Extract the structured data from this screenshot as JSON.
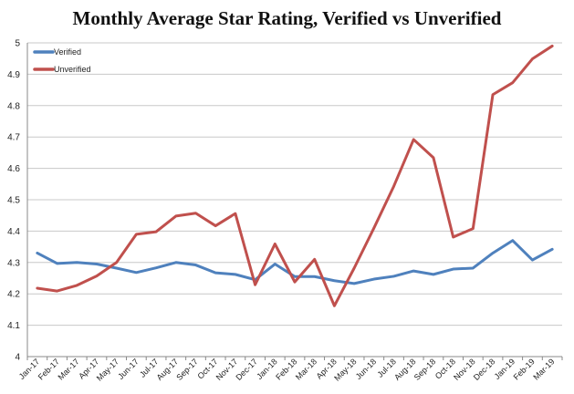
{
  "chart_data": {
    "type": "line",
    "title": "Monthly Average Star Rating, Verified vs Unverified",
    "xlabel": "",
    "ylabel": "",
    "ylim": [
      4,
      5
    ],
    "yticks": [
      "4",
      "4.1",
      "4.2",
      "4.3",
      "4.4",
      "4.5",
      "4.6",
      "4.7",
      "4.8",
      "4.9",
      "5"
    ],
    "grid": true,
    "legend_position": "top-left",
    "categories": [
      "Jan-17",
      "Feb-17",
      "Mar-17",
      "Apr-17",
      "May-17",
      "Jun-17",
      "Jul-17",
      "Aug-17",
      "Sep-17",
      "Oct-17",
      "Nov-17",
      "Dec-17",
      "Jan-18",
      "Feb-18",
      "Mar-18",
      "Apr-18",
      "May-18",
      "Jun-18",
      "Jul-18",
      "Aug-18",
      "Sep-18",
      "Oct-18",
      "Nov-18",
      "Dec-18",
      "Jan-19",
      "Feb-19",
      "Mar-19"
    ],
    "series": [
      {
        "name": "Verified",
        "color": "#4f81bd",
        "values": [
          4.33,
          4.297,
          4.3,
          4.295,
          4.282,
          4.268,
          4.283,
          4.3,
          4.292,
          4.267,
          4.262,
          4.245,
          4.295,
          4.255,
          4.255,
          4.242,
          4.233,
          4.247,
          4.256,
          4.273,
          4.262,
          4.279,
          4.282,
          4.33,
          4.37,
          4.308,
          4.342
        ]
      },
      {
        "name": "Unverified",
        "color": "#c0504d",
        "values": [
          4.218,
          4.209,
          4.227,
          4.257,
          4.3,
          4.39,
          4.398,
          4.448,
          4.457,
          4.417,
          4.456,
          4.229,
          4.359,
          4.238,
          4.31,
          4.162,
          4.282,
          4.41,
          4.543,
          4.692,
          4.634,
          4.381,
          4.408,
          4.835,
          4.873,
          4.949,
          4.99
        ]
      }
    ]
  }
}
